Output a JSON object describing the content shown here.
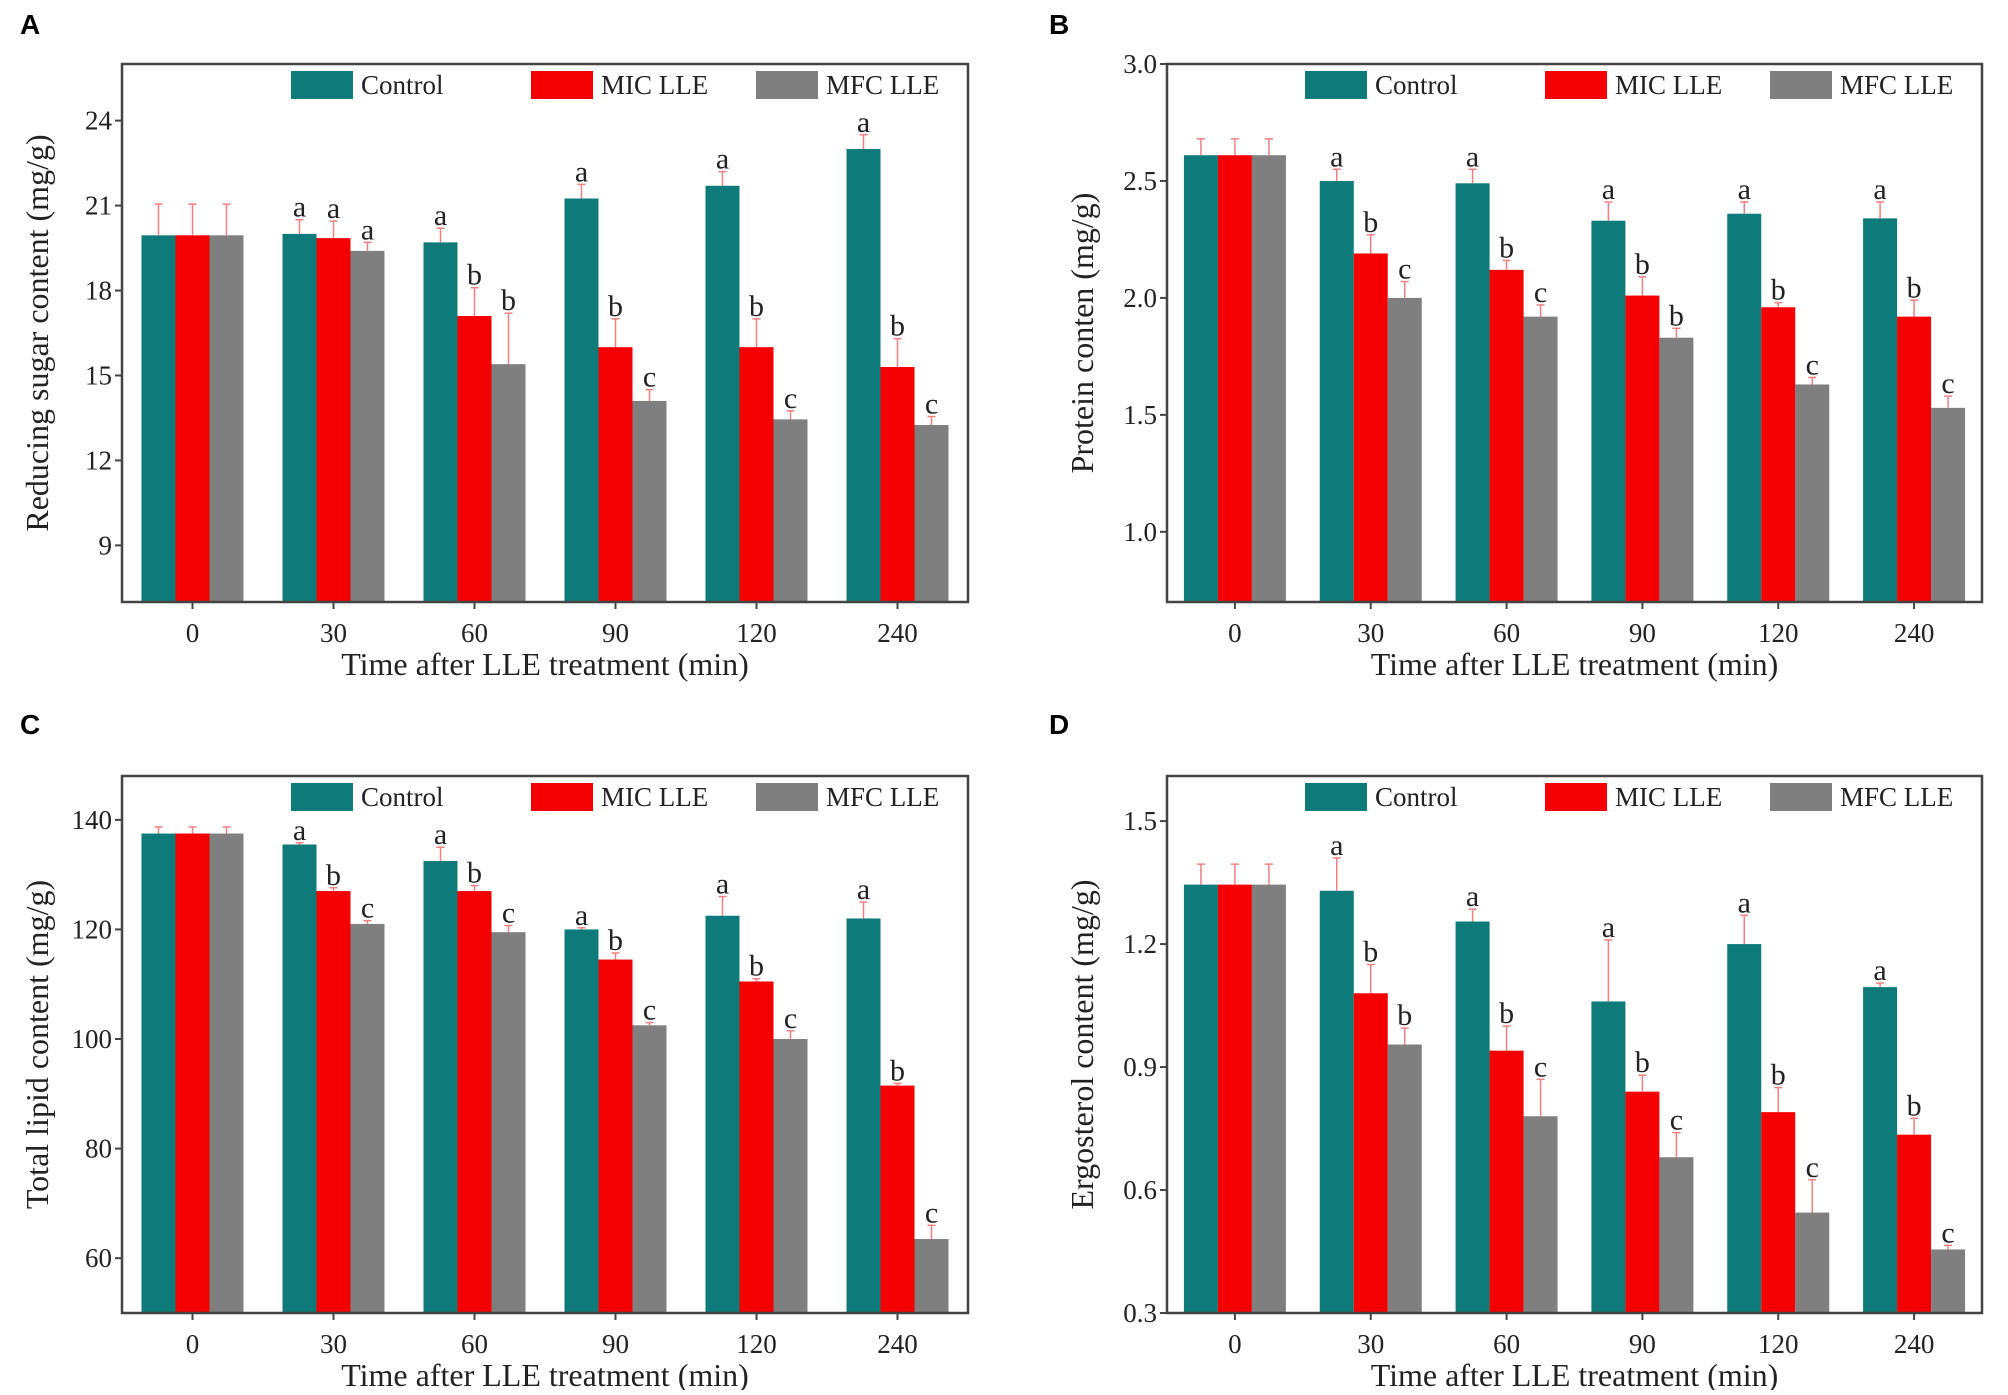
{
  "figure": {
    "colors": {
      "Control": "#0e7b7a",
      "MIC LLE": "#f40000",
      "MFC LLE": "#7f7f7f",
      "axis": "#444444",
      "error": "#f08080"
    }
  },
  "chart_data": [
    {
      "panel": "A",
      "type": "bar",
      "categories": [
        "0",
        "30",
        "60",
        "90",
        "120",
        "240"
      ],
      "xlabel": "Time after LLE treatment (min)",
      "ylabel": "Reducing sugar content (mg/g)",
      "ylim": [
        7,
        26
      ],
      "yticks": [
        9,
        12,
        15,
        18,
        21,
        24
      ],
      "ytick_labels": [
        "9",
        "12",
        "15",
        "18",
        "21",
        "24"
      ],
      "legend": "top-right",
      "grid": false,
      "series": [
        {
          "name": "Control",
          "values": [
            19.95,
            20.0,
            19.7,
            21.25,
            21.7,
            23.0
          ],
          "errors": [
            1.1,
            0.5,
            0.5,
            0.5,
            0.5,
            0.5
          ],
          "letters": [
            "",
            "a",
            "a",
            "a",
            "a",
            "a"
          ]
        },
        {
          "name": "MIC LLE",
          "values": [
            19.95,
            19.85,
            17.1,
            16.0,
            16.0,
            15.3
          ],
          "errors": [
            1.1,
            0.6,
            1.0,
            1.0,
            1.0,
            1.0
          ],
          "letters": [
            "",
            "a",
            "b",
            "b",
            "b",
            "b"
          ]
        },
        {
          "name": "MFC LLE",
          "values": [
            19.95,
            19.4,
            15.4,
            14.1,
            13.45,
            13.25
          ],
          "errors": [
            1.1,
            0.3,
            1.8,
            0.4,
            0.3,
            0.3
          ],
          "letters": [
            "",
            "a",
            "b",
            "c",
            "c",
            "c"
          ]
        }
      ]
    },
    {
      "panel": "B",
      "type": "bar",
      "categories": [
        "0",
        "30",
        "60",
        "90",
        "120",
        "240"
      ],
      "xlabel": "Time after LLE treatment (min)",
      "ylabel": "Protein conten (mg/g)",
      "ylim": [
        0.7,
        3.0
      ],
      "yticks": [
        1.0,
        1.5,
        2.0,
        2.5,
        3.0
      ],
      "ytick_labels": [
        "1.0",
        "1.5",
        "2.0",
        "2.5",
        "3.0"
      ],
      "legend": "top-right",
      "grid": false,
      "series": [
        {
          "name": "Control",
          "values": [
            2.61,
            2.5,
            2.49,
            2.33,
            2.36,
            2.34
          ],
          "errors": [
            0.07,
            0.05,
            0.06,
            0.08,
            0.05,
            0.07
          ],
          "letters": [
            "",
            "a",
            "a",
            "a",
            "a",
            "a"
          ]
        },
        {
          "name": "MIC LLE",
          "values": [
            2.61,
            2.19,
            2.12,
            2.01,
            1.96,
            1.92
          ],
          "errors": [
            0.07,
            0.08,
            0.04,
            0.08,
            0.02,
            0.07
          ],
          "letters": [
            "",
            "b",
            "b",
            "b",
            "b",
            "b"
          ]
        },
        {
          "name": "MFC LLE",
          "values": [
            2.61,
            2.0,
            1.92,
            1.83,
            1.63,
            1.53
          ],
          "errors": [
            0.07,
            0.07,
            0.05,
            0.04,
            0.03,
            0.05
          ],
          "letters": [
            "",
            "c",
            "c",
            "b",
            "c",
            "c"
          ]
        }
      ]
    },
    {
      "panel": "C",
      "type": "bar",
      "categories": [
        "0",
        "30",
        "60",
        "90",
        "120",
        "240"
      ],
      "xlabel": "Time after LLE treatment (min)",
      "ylabel": "Total lipid content (mg/g)",
      "ylim": [
        50,
        148
      ],
      "yticks": [
        60,
        80,
        100,
        120,
        140
      ],
      "ytick_labels": [
        "60",
        "80",
        "100",
        "120",
        "140"
      ],
      "legend": "top-right",
      "grid": false,
      "series": [
        {
          "name": "Control",
          "values": [
            137.5,
            135.5,
            132.5,
            120.0,
            122.5,
            122.0
          ],
          "errors": [
            1.2,
            0.3,
            2.5,
            0.3,
            3.5,
            3.0
          ],
          "letters": [
            "",
            "a",
            "a",
            "a",
            "a",
            "a"
          ]
        },
        {
          "name": "MIC LLE",
          "values": [
            137.5,
            127.0,
            127.0,
            114.5,
            110.5,
            91.5
          ],
          "errors": [
            1.2,
            0.6,
            1.0,
            1.2,
            0.5,
            0.4
          ],
          "letters": [
            "",
            "b",
            "b",
            "b",
            "b",
            "b"
          ]
        },
        {
          "name": "MFC LLE",
          "values": [
            137.5,
            121.0,
            119.5,
            102.5,
            100.0,
            63.5
          ],
          "errors": [
            1.2,
            0.6,
            1.2,
            0.5,
            1.5,
            2.5
          ],
          "letters": [
            "",
            "c",
            "c",
            "c",
            "c",
            "c"
          ]
        }
      ]
    },
    {
      "panel": "D",
      "type": "bar",
      "categories": [
        "0",
        "30",
        "60",
        "90",
        "120",
        "240"
      ],
      "xlabel": "Time after LLE treatment (min)",
      "ylabel": "Ergosterol content (mg/g)",
      "ylim": [
        0.3,
        1.61
      ],
      "yticks": [
        0.3,
        0.6,
        0.9,
        1.2,
        1.5
      ],
      "ytick_labels": [
        "0.3",
        "0.6",
        "0.9",
        "1.2",
        "1.5"
      ],
      "legend": "top-right",
      "grid": false,
      "series": [
        {
          "name": "Control",
          "values": [
            1.345,
            1.33,
            1.255,
            1.06,
            1.2,
            1.095
          ],
          "errors": [
            0.05,
            0.08,
            0.03,
            0.15,
            0.07,
            0.01
          ],
          "letters": [
            "",
            "a",
            "a",
            "a",
            "a",
            "a"
          ]
        },
        {
          "name": "MIC LLE",
          "values": [
            1.345,
            1.08,
            0.94,
            0.84,
            0.79,
            0.735
          ],
          "errors": [
            0.05,
            0.07,
            0.06,
            0.04,
            0.06,
            0.04
          ],
          "letters": [
            "",
            "b",
            "b",
            "b",
            "b",
            "b"
          ]
        },
        {
          "name": "MFC LLE",
          "values": [
            1.345,
            0.955,
            0.78,
            0.68,
            0.545,
            0.455
          ],
          "errors": [
            0.05,
            0.04,
            0.09,
            0.06,
            0.08,
            0.01
          ],
          "letters": [
            "",
            "b",
            "c",
            "c",
            "c",
            "c"
          ]
        }
      ]
    }
  ]
}
